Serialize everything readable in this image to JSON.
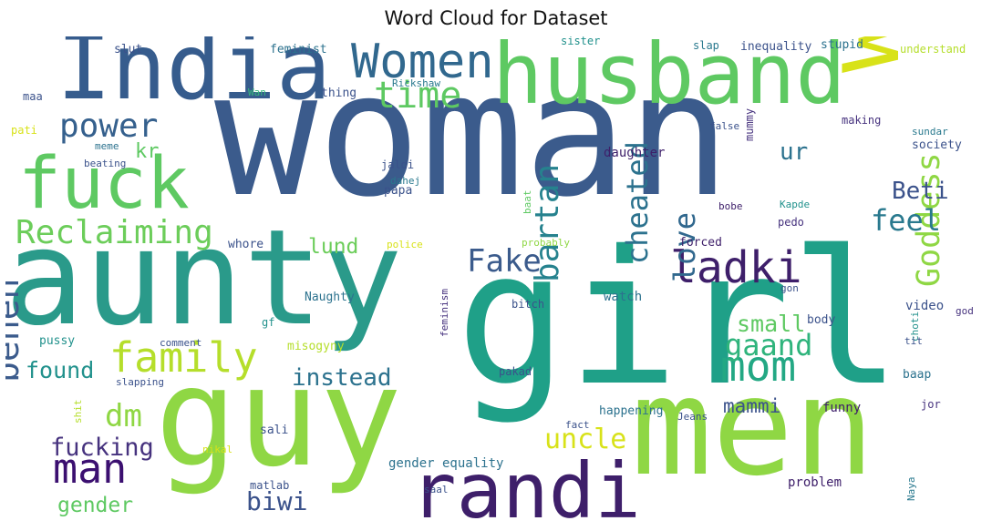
{
  "title": "Word Cloud for Dataset",
  "chart_data": {
    "type": "wordcloud",
    "title": "Word Cloud for Dataset",
    "colormap": "viridis",
    "background": "#ffffff",
    "words": [
      {
        "text": "woman",
        "weight": 1.0,
        "color": "#3b5b8c",
        "orientation": "horizontal"
      },
      {
        "text": "girl",
        "weight": 0.93,
        "color": "#1fa088",
        "orientation": "horizontal"
      },
      {
        "text": "men",
        "weight": 0.74,
        "color": "#8fd744",
        "orientation": "horizontal"
      },
      {
        "text": "guy",
        "weight": 0.74,
        "color": "#8fd744",
        "orientation": "horizontal"
      },
      {
        "text": "aunty",
        "weight": 0.66,
        "color": "#2a9a8a",
        "orientation": "horizontal"
      },
      {
        "text": "wife",
        "weight": 0.62,
        "color": "#d8e219",
        "orientation": "vertical"
      },
      {
        "text": "India",
        "weight": 0.5,
        "color": "#365c8d",
        "orientation": "horizontal"
      },
      {
        "text": "husband",
        "weight": 0.5,
        "color": "#5ec962",
        "orientation": "horizontal"
      },
      {
        "text": "randi",
        "weight": 0.43,
        "color": "#3e1f6a",
        "orientation": "horizontal"
      },
      {
        "text": "fuck",
        "weight": 0.4,
        "color": "#5ec962",
        "orientation": "horizontal"
      },
      {
        "text": "Women",
        "weight": 0.28,
        "color": "#31688e",
        "orientation": "horizontal"
      },
      {
        "text": "ladki",
        "weight": 0.23,
        "color": "#3e1f6a",
        "orientation": "horizontal"
      },
      {
        "text": "family",
        "weight": 0.22,
        "color": "#b5de2b",
        "orientation": "horizontal"
      },
      {
        "text": "man",
        "weight": 0.22,
        "color": "#3b0f70",
        "orientation": "horizontal"
      },
      {
        "text": "mom",
        "weight": 0.21,
        "color": "#23a884",
        "orientation": "horizontal"
      },
      {
        "text": "behen",
        "weight": 0.19,
        "color": "#3b5b8c",
        "orientation": "vertical"
      },
      {
        "text": "power",
        "weight": 0.18,
        "color": "#35608d",
        "orientation": "horizontal"
      },
      {
        "text": "time",
        "weight": 0.18,
        "color": "#5ec962",
        "orientation": "horizontal"
      },
      {
        "text": "Goddess",
        "weight": 0.17,
        "color": "#8fd744",
        "orientation": "vertical"
      },
      {
        "text": "Reclaiming",
        "weight": 0.17,
        "color": "#6ccd5a",
        "orientation": "horizontal"
      },
      {
        "text": "bartan",
        "weight": 0.17,
        "color": "#26828e",
        "orientation": "vertical"
      },
      {
        "text": "Fake",
        "weight": 0.17,
        "color": "#3b5b8c",
        "orientation": "horizontal"
      },
      {
        "text": "dm",
        "weight": 0.16,
        "color": "#8fd744",
        "orientation": "horizontal"
      },
      {
        "text": "cheated",
        "weight": 0.15,
        "color": "#2c728e",
        "orientation": "vertical"
      },
      {
        "text": "love",
        "weight": 0.15,
        "color": "#31688e",
        "orientation": "vertical"
      },
      {
        "text": "gaand",
        "weight": 0.15,
        "color": "#2fb47c",
        "orientation": "horizontal"
      },
      {
        "text": "feel",
        "weight": 0.15,
        "color": "#29798e",
        "orientation": "horizontal"
      },
      {
        "text": "uncle",
        "weight": 0.14,
        "color": "#d8e219",
        "orientation": "horizontal"
      },
      {
        "text": "biwi",
        "weight": 0.14,
        "color": "#3b528b",
        "orientation": "horizontal"
      },
      {
        "text": "fucking",
        "weight": 0.13,
        "color": "#46327e",
        "orientation": "horizontal"
      },
      {
        "text": "found",
        "weight": 0.13,
        "color": "#21918c",
        "orientation": "horizontal"
      },
      {
        "text": "instead",
        "weight": 0.12,
        "color": "#2c728e",
        "orientation": "horizontal"
      },
      {
        "text": "ur",
        "weight": 0.12,
        "color": "#2c728e",
        "orientation": "horizontal"
      },
      {
        "text": "Beti",
        "weight": 0.12,
        "color": "#3b528b",
        "orientation": "horizontal"
      },
      {
        "text": "small",
        "weight": 0.12,
        "color": "#5ec962",
        "orientation": "horizontal"
      },
      {
        "text": "gender",
        "weight": 0.11,
        "color": "#5ec962",
        "orientation": "horizontal"
      },
      {
        "text": "lund",
        "weight": 0.11,
        "color": "#6ccd5a",
        "orientation": "horizontal"
      },
      {
        "text": "kr",
        "weight": 0.11,
        "color": "#5ec962",
        "orientation": "horizontal"
      },
      {
        "text": "mammi",
        "weight": 0.1,
        "color": "#3b528b",
        "orientation": "horizontal"
      },
      {
        "text": "feminist",
        "weight": 0.06,
        "color": "#2c728e",
        "orientation": "horizontal"
      },
      {
        "text": "slut",
        "weight": 0.06,
        "color": "#3b528b",
        "orientation": "horizontal"
      },
      {
        "text": "sister",
        "weight": 0.06,
        "color": "#21918c",
        "orientation": "horizontal"
      },
      {
        "text": "slap",
        "weight": 0.06,
        "color": "#29798e",
        "orientation": "horizontal"
      },
      {
        "text": "inequality",
        "weight": 0.06,
        "color": "#3b528b",
        "orientation": "horizontal"
      },
      {
        "text": "stupid",
        "weight": 0.06,
        "color": "#2c728e",
        "orientation": "horizontal"
      },
      {
        "text": "understand",
        "weight": 0.06,
        "color": "#b5de2b",
        "orientation": "horizontal"
      },
      {
        "text": "maa",
        "weight": 0.06,
        "color": "#3b528b",
        "orientation": "horizontal"
      },
      {
        "text": "Wan",
        "weight": 0.05,
        "color": "#35b779",
        "orientation": "horizontal"
      },
      {
        "text": "thing",
        "weight": 0.06,
        "color": "#3b528b",
        "orientation": "horizontal"
      },
      {
        "text": "Rickshaw",
        "weight": 0.05,
        "color": "#29798e",
        "orientation": "horizontal"
      },
      {
        "text": "pati",
        "weight": 0.05,
        "color": "#d8e219",
        "orientation": "horizontal"
      },
      {
        "text": "false",
        "weight": 0.05,
        "color": "#3b528b",
        "orientation": "horizontal"
      },
      {
        "text": "making",
        "weight": 0.05,
        "color": "#46327e",
        "orientation": "horizontal"
      },
      {
        "text": "meme",
        "weight": 0.05,
        "color": "#2c728e",
        "orientation": "horizontal"
      },
      {
        "text": "sundar",
        "weight": 0.05,
        "color": "#29798e",
        "orientation": "horizontal"
      },
      {
        "text": "daughter",
        "weight": 0.06,
        "color": "#3e1f6a",
        "orientation": "horizontal"
      },
      {
        "text": "mummy",
        "weight": 0.05,
        "color": "#46327e",
        "orientation": "vertical"
      },
      {
        "text": "society",
        "weight": 0.06,
        "color": "#3b528b",
        "orientation": "horizontal"
      },
      {
        "text": "beating",
        "weight": 0.05,
        "color": "#3b528b",
        "orientation": "horizontal"
      },
      {
        "text": "jaldi",
        "weight": 0.05,
        "color": "#3b528b",
        "orientation": "horizontal"
      },
      {
        "text": "dahej",
        "weight": 0.05,
        "color": "#29798e",
        "orientation": "horizontal"
      },
      {
        "text": "papa",
        "weight": 0.06,
        "color": "#3b528b",
        "orientation": "horizontal"
      },
      {
        "text": "baat",
        "weight": 0.05,
        "color": "#5ec962",
        "orientation": "vertical"
      },
      {
        "text": "bobe",
        "weight": 0.05,
        "color": "#3e1f6a",
        "orientation": "horizontal"
      },
      {
        "text": "Kapde",
        "weight": 0.05,
        "color": "#21918c",
        "orientation": "horizontal"
      },
      {
        "text": "pedo",
        "weight": 0.05,
        "color": "#46327e",
        "orientation": "horizontal"
      },
      {
        "text": "whore",
        "weight": 0.06,
        "color": "#3b528b",
        "orientation": "horizontal"
      },
      {
        "text": "police",
        "weight": 0.05,
        "color": "#d8e219",
        "orientation": "horizontal"
      },
      {
        "text": "probably",
        "weight": 0.05,
        "color": "#8fd744",
        "orientation": "horizontal"
      },
      {
        "text": "forced",
        "weight": 0.06,
        "color": "#3e1f6a",
        "orientation": "horizontal"
      },
      {
        "text": "video",
        "weight": 0.06,
        "color": "#3b528b",
        "orientation": "horizontal"
      },
      {
        "text": "god",
        "weight": 0.05,
        "color": "#46327e",
        "orientation": "horizontal"
      },
      {
        "text": "gon",
        "weight": 0.05,
        "color": "#3b528b",
        "orientation": "horizontal"
      },
      {
        "text": "watch",
        "weight": 0.06,
        "color": "#2c728e",
        "orientation": "horizontal"
      },
      {
        "text": "body",
        "weight": 0.06,
        "color": "#3b528b",
        "orientation": "horizontal"
      },
      {
        "text": "bitch",
        "weight": 0.05,
        "color": "#3b528b",
        "orientation": "horizontal"
      },
      {
        "text": "Naughty",
        "weight": 0.05,
        "color": "#2c728e",
        "orientation": "horizontal"
      },
      {
        "text": "feminism",
        "weight": 0.05,
        "color": "#46327e",
        "orientation": "vertical"
      },
      {
        "text": "choti",
        "weight": 0.05,
        "color": "#21918c",
        "orientation": "vertical"
      },
      {
        "text": "tit",
        "weight": 0.05,
        "color": "#3b528b",
        "orientation": "horizontal"
      },
      {
        "text": "comment",
        "weight": 0.05,
        "color": "#3b528b",
        "orientation": "horizontal"
      },
      {
        "text": "gf",
        "weight": 0.05,
        "color": "#21918c",
        "orientation": "horizontal"
      },
      {
        "text": "pussy",
        "weight": 0.06,
        "color": "#21918c",
        "orientation": "horizontal"
      },
      {
        "text": "misogyny",
        "weight": 0.06,
        "color": "#b5de2b",
        "orientation": "horizontal"
      },
      {
        "text": "pakad",
        "weight": 0.05,
        "color": "#3b528b",
        "orientation": "horizontal"
      },
      {
        "text": "slapping",
        "weight": 0.05,
        "color": "#3b528b",
        "orientation": "horizontal"
      },
      {
        "text": "baap",
        "weight": 0.06,
        "color": "#2c728e",
        "orientation": "horizontal"
      },
      {
        "text": "shit",
        "weight": 0.05,
        "color": "#b5de2b",
        "orientation": "vertical"
      },
      {
        "text": "happening",
        "weight": 0.06,
        "color": "#2c728e",
        "orientation": "horizontal"
      },
      {
        "text": "Jeans",
        "weight": 0.05,
        "color": "#3b528b",
        "orientation": "horizontal"
      },
      {
        "text": "funny",
        "weight": 0.06,
        "color": "#3e1f6a",
        "orientation": "horizontal"
      },
      {
        "text": "jor",
        "weight": 0.05,
        "color": "#46327e",
        "orientation": "horizontal"
      },
      {
        "text": "sali",
        "weight": 0.06,
        "color": "#3b528b",
        "orientation": "horizontal"
      },
      {
        "text": "fact",
        "weight": 0.05,
        "color": "#3b528b",
        "orientation": "horizontal"
      },
      {
        "text": "nikal",
        "weight": 0.05,
        "color": "#d8e219",
        "orientation": "horizontal"
      },
      {
        "text": "gender equality",
        "weight": 0.06,
        "color": "#2c728e",
        "orientation": "horizontal"
      },
      {
        "text": "matlab",
        "weight": 0.05,
        "color": "#3b528b",
        "orientation": "horizontal"
      },
      {
        "text": "saal",
        "weight": 0.05,
        "color": "#3b528b",
        "orientation": "horizontal"
      },
      {
        "text": "problem",
        "weight": 0.06,
        "color": "#3e1f6a",
        "orientation": "horizontal"
      },
      {
        "text": "Naya",
        "weight": 0.05,
        "color": "#29798e",
        "orientation": "vertical"
      }
    ]
  }
}
